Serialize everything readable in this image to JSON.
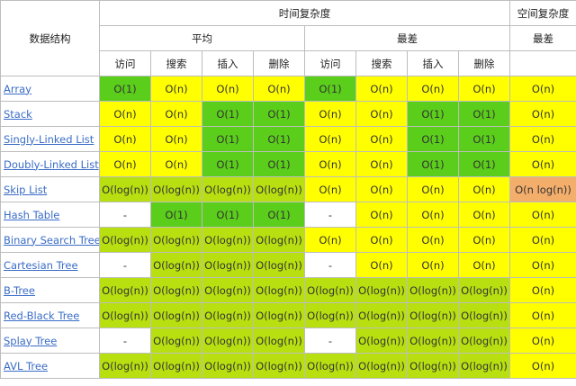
{
  "header": {
    "data_structure": "数据结构",
    "time_complexity": "时间复杂度",
    "space_complexity": "空间复杂度",
    "average": "平均",
    "worst": "最差",
    "space_worst": "最差",
    "ops": [
      "访问",
      "搜索",
      "插入",
      "删除",
      "访问",
      "搜索",
      "插入",
      "删除"
    ]
  },
  "colors": {
    "green": "#5ace1b",
    "lime": "#b8e010",
    "yellow": "#ffff00",
    "orange": "#f4ae6b",
    "white": "#ffffff",
    "link": "#3a6cc7"
  },
  "rows": [
    {
      "name": "Array",
      "cells": [
        [
          "O(1)",
          "green"
        ],
        [
          "O(n)",
          "yellow"
        ],
        [
          "O(n)",
          "yellow"
        ],
        [
          "O(n)",
          "yellow"
        ],
        [
          "O(1)",
          "green"
        ],
        [
          "O(n)",
          "yellow"
        ],
        [
          "O(n)",
          "yellow"
        ],
        [
          "O(n)",
          "yellow"
        ],
        [
          "O(n)",
          "yellow"
        ]
      ]
    },
    {
      "name": "Stack",
      "cells": [
        [
          "O(n)",
          "yellow"
        ],
        [
          "O(n)",
          "yellow"
        ],
        [
          "O(1)",
          "green"
        ],
        [
          "O(1)",
          "green"
        ],
        [
          "O(n)",
          "yellow"
        ],
        [
          "O(n)",
          "yellow"
        ],
        [
          "O(1)",
          "green"
        ],
        [
          "O(1)",
          "green"
        ],
        [
          "O(n)",
          "yellow"
        ]
      ]
    },
    {
      "name": "Singly-Linked List",
      "cells": [
        [
          "O(n)",
          "yellow"
        ],
        [
          "O(n)",
          "yellow"
        ],
        [
          "O(1)",
          "green"
        ],
        [
          "O(1)",
          "green"
        ],
        [
          "O(n)",
          "yellow"
        ],
        [
          "O(n)",
          "yellow"
        ],
        [
          "O(1)",
          "green"
        ],
        [
          "O(1)",
          "green"
        ],
        [
          "O(n)",
          "yellow"
        ]
      ]
    },
    {
      "name": "Doubly-Linked List",
      "cells": [
        [
          "O(n)",
          "yellow"
        ],
        [
          "O(n)",
          "yellow"
        ],
        [
          "O(1)",
          "green"
        ],
        [
          "O(1)",
          "green"
        ],
        [
          "O(n)",
          "yellow"
        ],
        [
          "O(n)",
          "yellow"
        ],
        [
          "O(1)",
          "green"
        ],
        [
          "O(1)",
          "green"
        ],
        [
          "O(n)",
          "yellow"
        ]
      ]
    },
    {
      "name": "Skip List",
      "cells": [
        [
          "O(log(n))",
          "lime"
        ],
        [
          "O(log(n))",
          "lime"
        ],
        [
          "O(log(n))",
          "lime"
        ],
        [
          "O(log(n))",
          "lime"
        ],
        [
          "O(n)",
          "yellow"
        ],
        [
          "O(n)",
          "yellow"
        ],
        [
          "O(n)",
          "yellow"
        ],
        [
          "O(n)",
          "yellow"
        ],
        [
          "O(n log(n))",
          "orange"
        ]
      ]
    },
    {
      "name": "Hash Table",
      "cells": [
        [
          "-",
          "white"
        ],
        [
          "O(1)",
          "green"
        ],
        [
          "O(1)",
          "green"
        ],
        [
          "O(1)",
          "green"
        ],
        [
          "-",
          "white"
        ],
        [
          "O(n)",
          "yellow"
        ],
        [
          "O(n)",
          "yellow"
        ],
        [
          "O(n)",
          "yellow"
        ],
        [
          "O(n)",
          "yellow"
        ]
      ]
    },
    {
      "name": "Binary Search Tree",
      "cells": [
        [
          "O(log(n))",
          "lime"
        ],
        [
          "O(log(n))",
          "lime"
        ],
        [
          "O(log(n))",
          "lime"
        ],
        [
          "O(log(n))",
          "lime"
        ],
        [
          "O(n)",
          "yellow"
        ],
        [
          "O(n)",
          "yellow"
        ],
        [
          "O(n)",
          "yellow"
        ],
        [
          "O(n)",
          "yellow"
        ],
        [
          "O(n)",
          "yellow"
        ]
      ]
    },
    {
      "name": "Cartesian Tree",
      "cells": [
        [
          "-",
          "white"
        ],
        [
          "O(log(n))",
          "lime"
        ],
        [
          "O(log(n))",
          "lime"
        ],
        [
          "O(log(n))",
          "lime"
        ],
        [
          "-",
          "white"
        ],
        [
          "O(n)",
          "yellow"
        ],
        [
          "O(n)",
          "yellow"
        ],
        [
          "O(n)",
          "yellow"
        ],
        [
          "O(n)",
          "yellow"
        ]
      ]
    },
    {
      "name": "B-Tree",
      "cells": [
        [
          "O(log(n))",
          "lime"
        ],
        [
          "O(log(n))",
          "lime"
        ],
        [
          "O(log(n))",
          "lime"
        ],
        [
          "O(log(n))",
          "lime"
        ],
        [
          "O(log(n))",
          "lime"
        ],
        [
          "O(log(n))",
          "lime"
        ],
        [
          "O(log(n))",
          "lime"
        ],
        [
          "O(log(n))",
          "lime"
        ],
        [
          "O(n)",
          "yellow"
        ]
      ]
    },
    {
      "name": "Red-Black Tree",
      "cells": [
        [
          "O(log(n))",
          "lime"
        ],
        [
          "O(log(n))",
          "lime"
        ],
        [
          "O(log(n))",
          "lime"
        ],
        [
          "O(log(n))",
          "lime"
        ],
        [
          "O(log(n))",
          "lime"
        ],
        [
          "O(log(n))",
          "lime"
        ],
        [
          "O(log(n))",
          "lime"
        ],
        [
          "O(log(n))",
          "lime"
        ],
        [
          "O(n)",
          "yellow"
        ]
      ]
    },
    {
      "name": "Splay Tree",
      "cells": [
        [
          "-",
          "white"
        ],
        [
          "O(log(n))",
          "lime"
        ],
        [
          "O(log(n))",
          "lime"
        ],
        [
          "O(log(n))",
          "lime"
        ],
        [
          "-",
          "white"
        ],
        [
          "O(log(n))",
          "lime"
        ],
        [
          "O(log(n))",
          "lime"
        ],
        [
          "O(log(n))",
          "lime"
        ],
        [
          "O(n)",
          "yellow"
        ]
      ]
    },
    {
      "name": "AVL Tree",
      "cells": [
        [
          "O(log(n))",
          "lime"
        ],
        [
          "O(log(n))",
          "lime"
        ],
        [
          "O(log(n))",
          "lime"
        ],
        [
          "O(log(n))",
          "lime"
        ],
        [
          "O(log(n))",
          "lime"
        ],
        [
          "O(log(n))",
          "lime"
        ],
        [
          "O(log(n))",
          "lime"
        ],
        [
          "O(log(n))",
          "lime"
        ],
        [
          "O(n)",
          "yellow"
        ]
      ]
    }
  ]
}
